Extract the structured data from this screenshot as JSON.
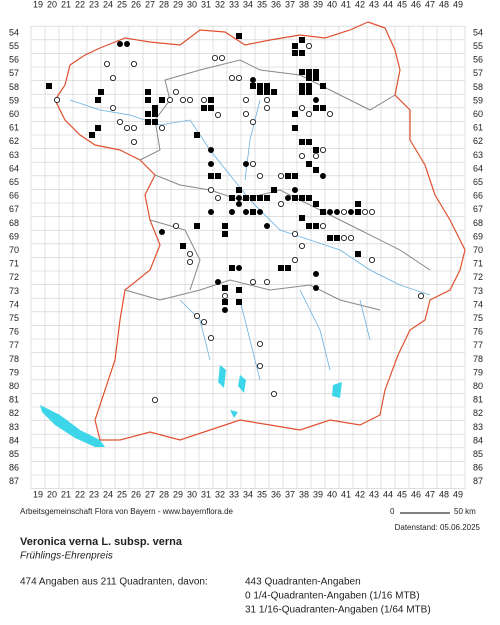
{
  "map": {
    "x_labels": [
      19,
      20,
      21,
      22,
      23,
      24,
      25,
      26,
      27,
      28,
      29,
      30,
      31,
      32,
      33,
      34,
      35,
      36,
      37,
      38,
      39,
      40,
      41,
      42,
      43,
      44,
      45,
      46,
      47,
      48,
      49
    ],
    "y_labels": [
      54,
      55,
      56,
      57,
      58,
      59,
      60,
      61,
      62,
      63,
      64,
      65,
      66,
      67,
      68,
      69,
      70,
      71,
      72,
      73,
      74,
      75,
      76,
      77,
      78,
      79,
      80,
      81,
      82,
      83,
      84,
      85,
      86,
      87
    ],
    "credit": "Arbeitsgemeinschaft Flora von Bayern - www.bayernflora.de",
    "scale_start": "0",
    "scale_end": "50 km",
    "date": "Datenstand: 05.06.2025"
  },
  "species": {
    "name": "Veronica verna L. subsp. verna",
    "common_name": "Frühlings-Ehrenpreis"
  },
  "summary": {
    "total": "474 Angaben aus 211 Quadranten, davon:",
    "lines": [
      "443 Quadranten-Angaben",
      "0 1/4-Quadranten-Angaben (1/16 MTB)",
      "31 1/16-Quadranten-Angaben (1/64 MTB)"
    ]
  }
}
